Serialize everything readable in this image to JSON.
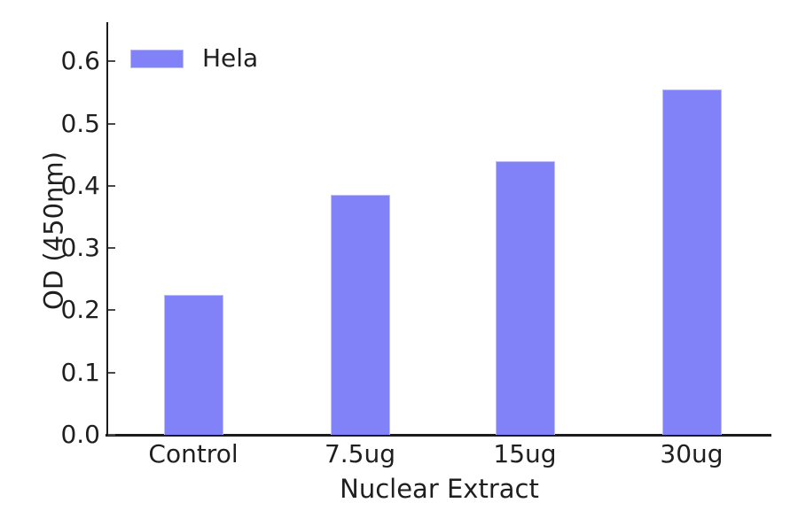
{
  "chart_data": {
    "type": "bar",
    "title": "",
    "categories": [
      "Control",
      "7.5ug",
      "15ug",
      "30ug"
    ],
    "series": [
      {
        "name": "Hela",
        "values": [
          0.225,
          0.385,
          0.44,
          0.555
        ]
      }
    ],
    "xlabel": "Nuclear Extract",
    "ylabel": "OD (450nm)",
    "ylim": [
      0.0,
      0.664
    ],
    "yticks": [
      "0.0",
      "0.1",
      "0.2",
      "0.3",
      "0.4",
      "0.5",
      "0.6"
    ],
    "grid": false,
    "legend": {
      "position": "upper-left",
      "entries": [
        {
          "label": "Hela",
          "color": "#8181f8"
        }
      ]
    },
    "colors": {
      "bar_fill": "#8181f8",
      "bar_edge": "#bdbdfa",
      "axis": "#1c1c1c",
      "tick": "#4a4a4a",
      "text": "#1f1f1f",
      "background": "#ffffff"
    }
  }
}
